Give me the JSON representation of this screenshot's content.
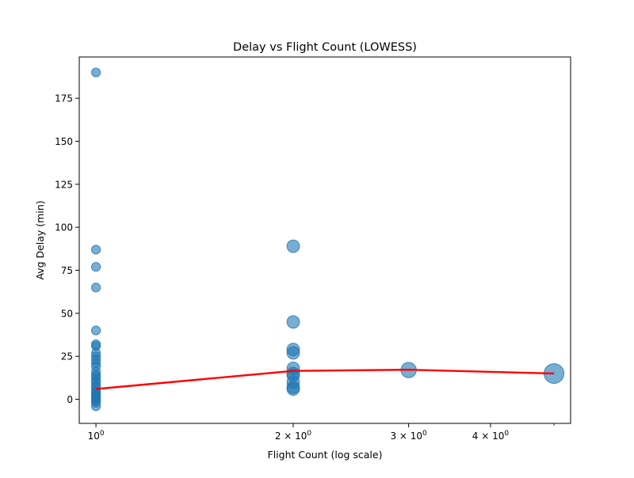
{
  "chart_data": {
    "type": "scatter",
    "title": "Delay vs Flight Count (LOWESS)",
    "xlabel": "Flight Count (log scale)",
    "ylabel": "Avg Delay (min)",
    "x_scale": "log",
    "xlim": [
      0.943,
      5.3
    ],
    "ylim": [
      -14,
      199
    ],
    "grid": false,
    "x_ticks": [
      {
        "value": 1,
        "base": "10",
        "exp": "0"
      },
      {
        "value": 2,
        "base": "2 × 10",
        "exp": "0"
      },
      {
        "value": 3,
        "base": "3 × 10",
        "exp": "0"
      },
      {
        "value": 4,
        "base": "4 × 10",
        "exp": "0"
      }
    ],
    "x_minor_ticks": [
      5
    ],
    "y_ticks": [
      0,
      25,
      50,
      75,
      100,
      125,
      150,
      175
    ],
    "colors": {
      "points": "#1f77b4",
      "trend": "#ff0000"
    },
    "series": [
      {
        "type": "scatter",
        "points": [
          {
            "x": 1,
            "y": 190
          },
          {
            "x": 1,
            "y": 87
          },
          {
            "x": 1,
            "y": 77
          },
          {
            "x": 1,
            "y": 65
          },
          {
            "x": 1,
            "y": 40
          },
          {
            "x": 1,
            "y": 32
          },
          {
            "x": 1,
            "y": 31
          },
          {
            "x": 1,
            "y": 27
          },
          {
            "x": 1,
            "y": 25
          },
          {
            "x": 1,
            "y": 23
          },
          {
            "x": 1,
            "y": 21
          },
          {
            "x": 1,
            "y": 19
          },
          {
            "x": 1,
            "y": 16
          },
          {
            "x": 1,
            "y": 14
          },
          {
            "x": 1,
            "y": 13
          },
          {
            "x": 1,
            "y": 11
          },
          {
            "x": 1,
            "y": 10
          },
          {
            "x": 1,
            "y": 8
          },
          {
            "x": 1,
            "y": 7
          },
          {
            "x": 1,
            "y": 5
          },
          {
            "x": 1,
            "y": 4
          },
          {
            "x": 1,
            "y": 3
          },
          {
            "x": 1,
            "y": 2
          },
          {
            "x": 1,
            "y": 1
          },
          {
            "x": 1,
            "y": 0
          },
          {
            "x": 1,
            "y": -1
          },
          {
            "x": 1,
            "y": -2
          },
          {
            "x": 1,
            "y": -4
          },
          {
            "x": 2,
            "y": 89
          },
          {
            "x": 2,
            "y": 45
          },
          {
            "x": 2,
            "y": 29
          },
          {
            "x": 2,
            "y": 27
          },
          {
            "x": 2,
            "y": 18
          },
          {
            "x": 2,
            "y": 15
          },
          {
            "x": 2,
            "y": 14
          },
          {
            "x": 2,
            "y": 10
          },
          {
            "x": 2,
            "y": 7
          },
          {
            "x": 2,
            "y": 6
          },
          {
            "x": 3,
            "y": 17
          },
          {
            "x": 5,
            "y": 15
          }
        ]
      },
      {
        "type": "line",
        "points": [
          {
            "x": 1,
            "y": 6
          },
          {
            "x": 2,
            "y": 16.5
          },
          {
            "x": 3,
            "y": 17.2
          },
          {
            "x": 5,
            "y": 15
          }
        ]
      }
    ]
  }
}
